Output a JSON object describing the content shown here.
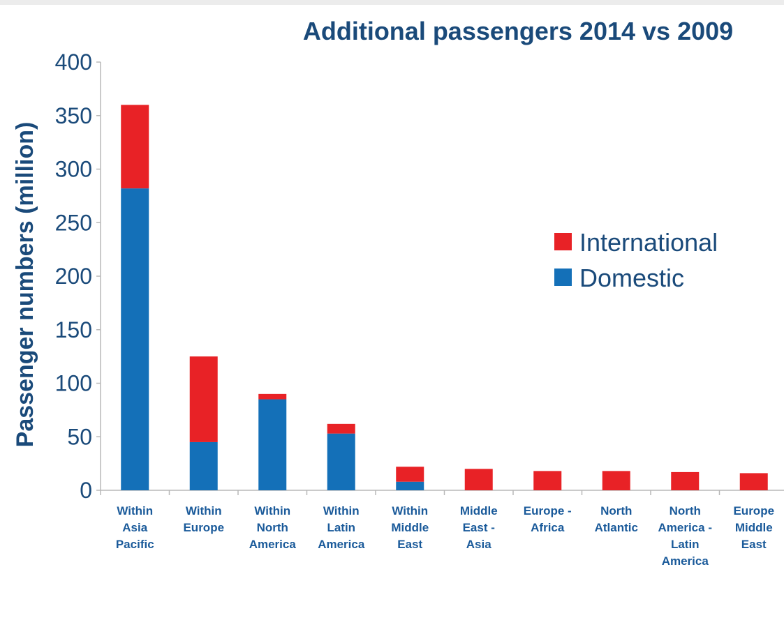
{
  "chart_data": {
    "type": "bar",
    "stacked": true,
    "title": "Additional passengers 2014 vs 2009",
    "ylabel": "Passenger numbers (million)",
    "xlabel": "",
    "ylim": [
      0,
      400
    ],
    "yticks": [
      0,
      50,
      100,
      150,
      200,
      250,
      300,
      350,
      400
    ],
    "grid": false,
    "legend_position": "right",
    "categories": [
      [
        "Within",
        "Asia",
        "Pacific"
      ],
      [
        "Within",
        "Europe"
      ],
      [
        "Within",
        "North",
        "America"
      ],
      [
        "Within",
        "Latin",
        "America"
      ],
      [
        "Within",
        "Middle",
        "East"
      ],
      [
        "Middle",
        "East -",
        "Asia"
      ],
      [
        "Europe -",
        "Africa"
      ],
      [
        "North",
        "Atlantic"
      ],
      [
        "North",
        "America -",
        "Latin",
        "America"
      ],
      [
        "Europe",
        "Middle",
        "East"
      ]
    ],
    "series": [
      {
        "name": "Domestic",
        "color": "#1470b8",
        "values": [
          282,
          45,
          85,
          53,
          8,
          0,
          0,
          0,
          0,
          0
        ]
      },
      {
        "name": "International",
        "color": "#e82226",
        "values": [
          78,
          80,
          5,
          9,
          14,
          20,
          18,
          18,
          17,
          16
        ]
      }
    ],
    "legend": [
      "International",
      "Domestic"
    ]
  }
}
